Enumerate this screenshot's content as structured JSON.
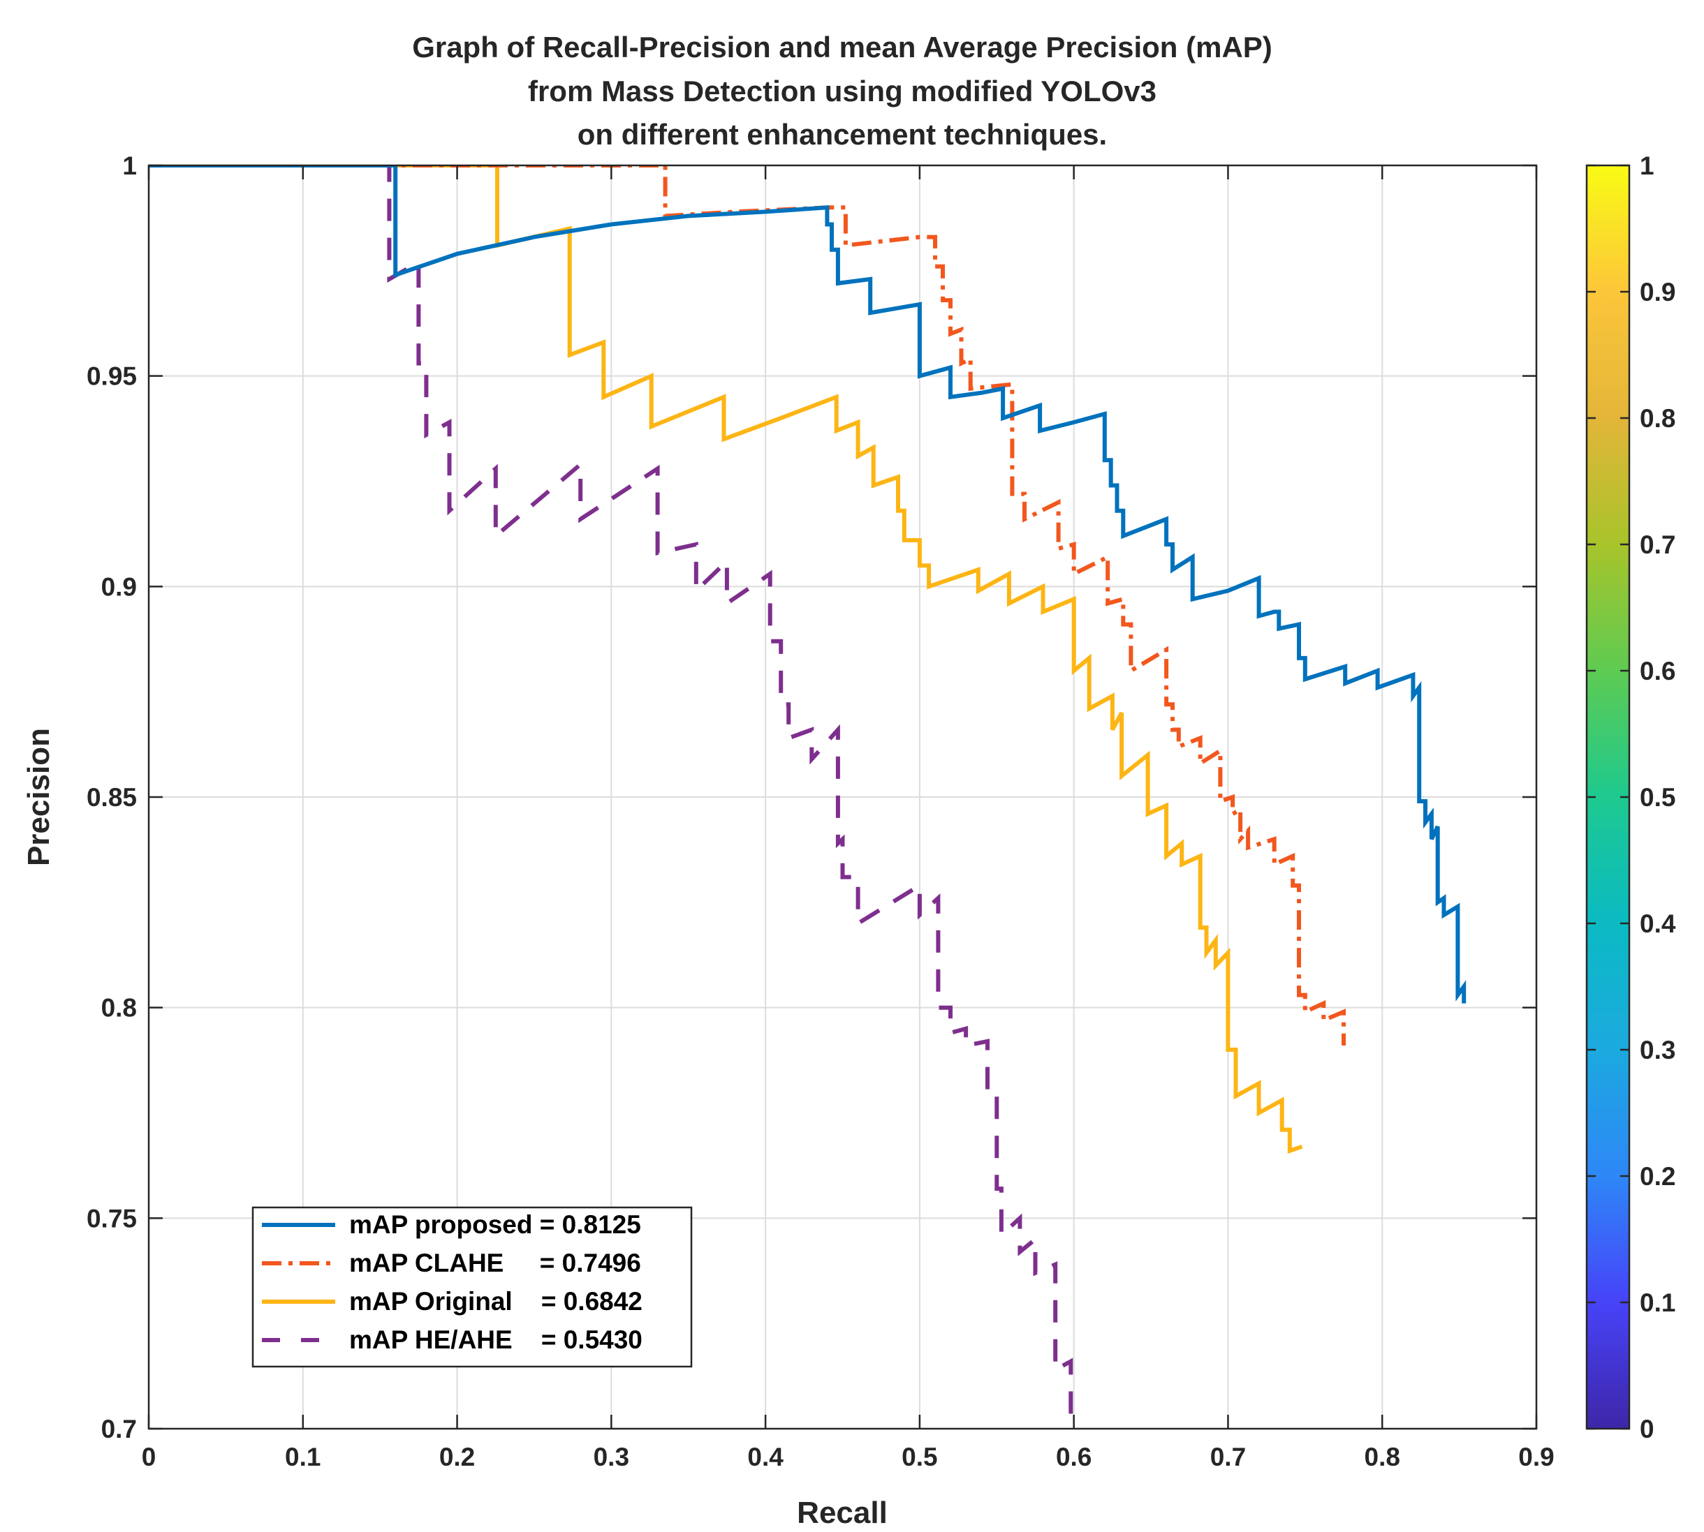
{
  "chart_data": {
    "type": "line",
    "title": [
      "Graph of Recall-Precision and mean Average Precision (mAP)",
      "from Mass Detection using modified YOLOv3",
      "on different enhancement techniques."
    ],
    "xlabel": "Recall",
    "ylabel": "Precision",
    "xlim": [
      0,
      0.9
    ],
    "ylim": [
      0.7,
      1
    ],
    "xticks": [
      0,
      0.1,
      0.2,
      0.3,
      0.4,
      0.5,
      0.6,
      0.7,
      0.8,
      0.9
    ],
    "xtick_labels": [
      "0",
      "0.1",
      "0.2",
      "0.3",
      "0.4",
      "0.5",
      "0.6",
      "0.7",
      "0.8",
      "0.9"
    ],
    "yticks": [
      0.7,
      0.75,
      0.8,
      0.85,
      0.9,
      0.95,
      1
    ],
    "ytick_labels": [
      "0.7",
      "0.75",
      "0.8",
      "0.85",
      "0.9",
      "0.95",
      "1"
    ],
    "grid": true,
    "legend_position": "bottom-left",
    "colorbar": {
      "ticks": [
        0,
        0.1,
        0.2,
        0.3,
        0.4,
        0.5,
        0.6,
        0.7,
        0.8,
        0.9,
        1
      ],
      "tick_labels": [
        "0",
        "0.1",
        "0.2",
        "0.3",
        "0.4",
        "0.5",
        "0.6",
        "0.7",
        "0.8",
        "0.9",
        "1"
      ],
      "colormap": [
        "#3e26a8",
        "#4743f8",
        "#2e87f7",
        "#1ca9df",
        "#0bbac3",
        "#1ec98f",
        "#5ecb52",
        "#a8c42b",
        "#e3b539",
        "#fcc63a",
        "#f9fb15"
      ]
    },
    "series": [
      {
        "name": "mAP proposed",
        "legend_label": "mAP proposed = 0.8125",
        "map": 0.8125,
        "color": "#0072bd",
        "style": "solid",
        "points": [
          [
            0,
            1
          ],
          [
            0.16,
            1
          ],
          [
            0.16,
            0.974
          ],
          [
            0.2,
            0.979
          ],
          [
            0.25,
            0.983
          ],
          [
            0.3,
            0.986
          ],
          [
            0.35,
            0.988
          ],
          [
            0.4,
            0.989
          ],
          [
            0.44,
            0.99
          ],
          [
            0.44,
            0.986
          ],
          [
            0.443,
            0.986
          ],
          [
            0.443,
            0.98
          ],
          [
            0.447,
            0.98
          ],
          [
            0.447,
            0.972
          ],
          [
            0.468,
            0.973
          ],
          [
            0.468,
            0.965
          ],
          [
            0.5,
            0.967
          ],
          [
            0.5,
            0.95
          ],
          [
            0.52,
            0.952
          ],
          [
            0.52,
            0.945
          ],
          [
            0.54,
            0.946
          ],
          [
            0.554,
            0.947
          ],
          [
            0.554,
            0.94
          ],
          [
            0.578,
            0.943
          ],
          [
            0.578,
            0.937
          ],
          [
            0.6,
            0.939
          ],
          [
            0.62,
            0.941
          ],
          [
            0.62,
            0.93
          ],
          [
            0.624,
            0.93
          ],
          [
            0.624,
            0.924
          ],
          [
            0.628,
            0.924
          ],
          [
            0.628,
            0.918
          ],
          [
            0.632,
            0.918
          ],
          [
            0.632,
            0.912
          ],
          [
            0.66,
            0.916
          ],
          [
            0.66,
            0.91
          ],
          [
            0.664,
            0.91
          ],
          [
            0.664,
            0.904
          ],
          [
            0.677,
            0.907
          ],
          [
            0.677,
            0.897
          ],
          [
            0.7,
            0.899
          ],
          [
            0.72,
            0.902
          ],
          [
            0.72,
            0.893
          ],
          [
            0.73,
            0.894
          ],
          [
            0.733,
            0.894
          ],
          [
            0.733,
            0.89
          ],
          [
            0.746,
            0.891
          ],
          [
            0.746,
            0.883
          ],
          [
            0.75,
            0.883
          ],
          [
            0.75,
            0.878
          ],
          [
            0.776,
            0.881
          ],
          [
            0.776,
            0.877
          ],
          [
            0.797,
            0.88
          ],
          [
            0.797,
            0.876
          ],
          [
            0.82,
            0.879
          ],
          [
            0.82,
            0.874
          ],
          [
            0.824,
            0.876
          ],
          [
            0.824,
            0.849
          ],
          [
            0.828,
            0.849
          ],
          [
            0.828,
            0.844
          ],
          [
            0.832,
            0.846
          ],
          [
            0.832,
            0.84
          ],
          [
            0.836,
            0.843
          ],
          [
            0.836,
            0.825
          ],
          [
            0.84,
            0.826
          ],
          [
            0.84,
            0.822
          ],
          [
            0.849,
            0.824
          ],
          [
            0.849,
            0.803
          ],
          [
            0.853,
            0.805
          ],
          [
            0.853,
            0.801
          ]
        ]
      },
      {
        "name": "mAP CLAHE",
        "legend_label": "mAP CLAHE     = 0.7496",
        "map": 0.7496,
        "color": "#f2571e",
        "style": "dashdot",
        "points": [
          [
            0,
            1
          ],
          [
            0.335,
            1
          ],
          [
            0.335,
            0.988
          ],
          [
            0.38,
            0.989
          ],
          [
            0.44,
            0.99
          ],
          [
            0.452,
            0.99
          ],
          [
            0.452,
            0.981
          ],
          [
            0.5,
            0.983
          ],
          [
            0.51,
            0.983
          ],
          [
            0.51,
            0.976
          ],
          [
            0.515,
            0.976
          ],
          [
            0.515,
            0.968
          ],
          [
            0.52,
            0.968
          ],
          [
            0.52,
            0.96
          ],
          [
            0.527,
            0.961
          ],
          [
            0.527,
            0.953
          ],
          [
            0.533,
            0.954
          ],
          [
            0.533,
            0.947
          ],
          [
            0.56,
            0.948
          ],
          [
            0.56,
            0.922
          ],
          [
            0.568,
            0.922
          ],
          [
            0.568,
            0.916
          ],
          [
            0.59,
            0.92
          ],
          [
            0.59,
            0.909
          ],
          [
            0.6,
            0.91
          ],
          [
            0.6,
            0.903
          ],
          [
            0.622,
            0.907
          ],
          [
            0.622,
            0.896
          ],
          [
            0.632,
            0.897
          ],
          [
            0.632,
            0.891
          ],
          [
            0.637,
            0.891
          ],
          [
            0.637,
            0.88
          ],
          [
            0.66,
            0.885
          ],
          [
            0.66,
            0.872
          ],
          [
            0.664,
            0.872
          ],
          [
            0.664,
            0.866
          ],
          [
            0.668,
            0.866
          ],
          [
            0.668,
            0.862
          ],
          [
            0.682,
            0.864
          ],
          [
            0.682,
            0.858
          ],
          [
            0.695,
            0.861
          ],
          [
            0.695,
            0.849
          ],
          [
            0.703,
            0.85
          ],
          [
            0.703,
            0.846
          ],
          [
            0.708,
            0.847
          ],
          [
            0.708,
            0.84
          ],
          [
            0.713,
            0.842
          ],
          [
            0.713,
            0.838
          ],
          [
            0.73,
            0.84
          ],
          [
            0.73,
            0.834
          ],
          [
            0.742,
            0.836
          ],
          [
            0.742,
            0.829
          ],
          [
            0.746,
            0.829
          ],
          [
            0.746,
            0.803
          ],
          [
            0.75,
            0.803
          ],
          [
            0.75,
            0.799
          ],
          [
            0.762,
            0.801
          ],
          [
            0.762,
            0.797
          ],
          [
            0.775,
            0.799
          ],
          [
            0.775,
            0.791
          ]
        ]
      },
      {
        "name": "mAP Original",
        "legend_label": "mAP Original    = 0.6842",
        "map": 0.6842,
        "color": "#fdb515",
        "style": "solid",
        "points": [
          [
            0,
            1
          ],
          [
            0.226,
            1
          ],
          [
            0.226,
            0.981
          ],
          [
            0.273,
            0.985
          ],
          [
            0.273,
            0.955
          ],
          [
            0.295,
            0.958
          ],
          [
            0.295,
            0.945
          ],
          [
            0.326,
            0.95
          ],
          [
            0.326,
            0.938
          ],
          [
            0.373,
            0.945
          ],
          [
            0.373,
            0.935
          ],
          [
            0.41,
            0.94
          ],
          [
            0.446,
            0.945
          ],
          [
            0.446,
            0.937
          ],
          [
            0.46,
            0.939
          ],
          [
            0.46,
            0.931
          ],
          [
            0.47,
            0.933
          ],
          [
            0.47,
            0.924
          ],
          [
            0.486,
            0.926
          ],
          [
            0.486,
            0.918
          ],
          [
            0.49,
            0.918
          ],
          [
            0.49,
            0.911
          ],
          [
            0.5,
            0.911
          ],
          [
            0.5,
            0.905
          ],
          [
            0.506,
            0.905
          ],
          [
            0.506,
            0.9
          ],
          [
            0.538,
            0.904
          ],
          [
            0.538,
            0.899
          ],
          [
            0.558,
            0.903
          ],
          [
            0.558,
            0.896
          ],
          [
            0.58,
            0.9
          ],
          [
            0.58,
            0.894
          ],
          [
            0.6,
            0.897
          ],
          [
            0.6,
            0.88
          ],
          [
            0.61,
            0.883
          ],
          [
            0.61,
            0.871
          ],
          [
            0.625,
            0.874
          ],
          [
            0.625,
            0.866
          ],
          [
            0.631,
            0.87
          ],
          [
            0.631,
            0.855
          ],
          [
            0.648,
            0.86
          ],
          [
            0.648,
            0.846
          ],
          [
            0.66,
            0.848
          ],
          [
            0.66,
            0.836
          ],
          [
            0.67,
            0.839
          ],
          [
            0.67,
            0.834
          ],
          [
            0.682,
            0.836
          ],
          [
            0.682,
            0.819
          ],
          [
            0.686,
            0.819
          ],
          [
            0.686,
            0.813
          ],
          [
            0.692,
            0.816
          ],
          [
            0.692,
            0.81
          ],
          [
            0.7,
            0.813
          ],
          [
            0.7,
            0.79
          ],
          [
            0.705,
            0.79
          ],
          [
            0.705,
            0.779
          ],
          [
            0.72,
            0.782
          ],
          [
            0.72,
            0.775
          ],
          [
            0.735,
            0.778
          ],
          [
            0.735,
            0.771
          ],
          [
            0.74,
            0.771
          ],
          [
            0.74,
            0.766
          ],
          [
            0.748,
            0.767
          ]
        ]
      },
      {
        "name": "mAP HE/AHE",
        "legend_label": "mAP HE/AHE    = 0.5430",
        "map": 0.543,
        "color": "#7e2f8e",
        "style": "dashed",
        "points": [
          [
            0,
            1
          ],
          [
            0.156,
            1
          ],
          [
            0.156,
            0.973
          ],
          [
            0.175,
            0.977
          ],
          [
            0.175,
            0.953
          ],
          [
            0.18,
            0.953
          ],
          [
            0.18,
            0.936
          ],
          [
            0.195,
            0.939
          ],
          [
            0.195,
            0.918
          ],
          [
            0.225,
            0.928
          ],
          [
            0.225,
            0.912
          ],
          [
            0.28,
            0.929
          ],
          [
            0.28,
            0.916
          ],
          [
            0.33,
            0.928
          ],
          [
            0.33,
            0.908
          ],
          [
            0.355,
            0.91
          ],
          [
            0.355,
            0.899
          ],
          [
            0.375,
            0.906
          ],
          [
            0.375,
            0.896
          ],
          [
            0.403,
            0.903
          ],
          [
            0.403,
            0.887
          ],
          [
            0.41,
            0.887
          ],
          [
            0.41,
            0.872
          ],
          [
            0.415,
            0.872
          ],
          [
            0.415,
            0.864
          ],
          [
            0.43,
            0.866
          ],
          [
            0.43,
            0.859
          ],
          [
            0.447,
            0.866
          ],
          [
            0.447,
            0.839
          ],
          [
            0.45,
            0.84
          ],
          [
            0.45,
            0.831
          ],
          [
            0.46,
            0.831
          ],
          [
            0.46,
            0.82
          ],
          [
            0.5,
            0.829
          ],
          [
            0.5,
            0.822
          ],
          [
            0.512,
            0.826
          ],
          [
            0.512,
            0.8
          ],
          [
            0.52,
            0.8
          ],
          [
            0.52,
            0.794
          ],
          [
            0.53,
            0.795
          ],
          [
            0.53,
            0.791
          ],
          [
            0.544,
            0.792
          ],
          [
            0.544,
            0.78
          ],
          [
            0.55,
            0.78
          ],
          [
            0.55,
            0.757
          ],
          [
            0.553,
            0.757
          ],
          [
            0.553,
            0.746
          ],
          [
            0.565,
            0.75
          ],
          [
            0.565,
            0.742
          ],
          [
            0.575,
            0.745
          ],
          [
            0.575,
            0.737
          ],
          [
            0.588,
            0.739
          ],
          [
            0.588,
            0.714
          ],
          [
            0.598,
            0.716
          ],
          [
            0.598,
            0.7
          ]
        ]
      }
    ]
  }
}
